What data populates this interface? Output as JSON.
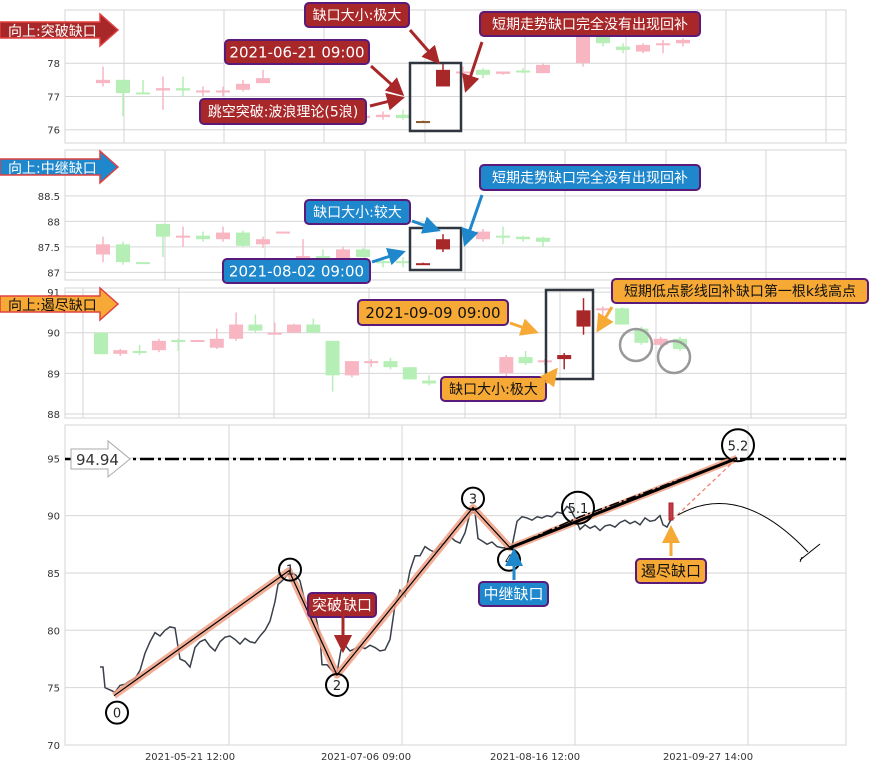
{
  "colors": {
    "up": "#f7b6c2",
    "down": "#b6efb6",
    "highlight": "#a8282a",
    "grid": "#d6d6d6",
    "red_tag": "#a8282a",
    "blue_tag": "#1f87cc",
    "orange_tag": "#f6a935",
    "wave": "#f0a084"
  },
  "chart_data": [
    {
      "type": "candlestick",
      "panel": "breakaway",
      "tag": "向上:突破缺口",
      "yticks": [
        78,
        77,
        76
      ],
      "ylim": [
        75.6,
        79.6
      ],
      "candles": [
        {
          "i": 0,
          "o": 77.4,
          "h": 77.9,
          "l": 77.3,
          "c": 77.5
        },
        {
          "i": 1,
          "o": 77.5,
          "h": 77.5,
          "l": 76.4,
          "c": 77.1
        },
        {
          "i": 2,
          "o": 77.12,
          "h": 77.5,
          "l": 77.1,
          "c": 77.1
        },
        {
          "i": 3,
          "o": 77.18,
          "h": 77.6,
          "l": 76.6,
          "c": 77.25
        },
        {
          "i": 4,
          "o": 77.25,
          "h": 77.6,
          "l": 77.0,
          "c": 77.18
        },
        {
          "i": 5,
          "o": 77.14,
          "h": 77.3,
          "l": 77.0,
          "c": 77.18
        },
        {
          "i": 6,
          "o": 77.14,
          "h": 77.3,
          "l": 77.0,
          "c": 77.18
        },
        {
          "i": 7,
          "o": 77.2,
          "h": 77.5,
          "l": 77.15,
          "c": 77.38
        },
        {
          "i": 8,
          "o": 77.4,
          "h": 77.8,
          "l": 77.4,
          "c": 77.55
        },
        {
          "i": 13,
          "o": 76.35,
          "h": 76.5,
          "l": 76.2,
          "c": 76.42
        },
        {
          "i": 14,
          "o": 76.38,
          "h": 76.55,
          "l": 76.3,
          "c": 76.45
        },
        {
          "i": 15,
          "o": 76.45,
          "h": 76.6,
          "l": 76.3,
          "c": 76.35
        },
        {
          "i": 16,
          "o": 76.24,
          "h": 76.27,
          "l": 76.2,
          "c": 76.26,
          "hl": "doji"
        },
        {
          "i": 17,
          "o": 77.3,
          "h": 78.0,
          "l": 77.3,
          "c": 77.8,
          "hl": "gap"
        },
        {
          "i": 18,
          "o": 77.7,
          "h": 77.9,
          "l": 77.55,
          "c": 77.75
        },
        {
          "i": 19,
          "o": 77.8,
          "h": 77.85,
          "l": 77.55,
          "c": 77.65
        },
        {
          "i": 20,
          "o": 77.68,
          "h": 77.75,
          "l": 77.65,
          "c": 77.75
        },
        {
          "i": 21,
          "o": 77.78,
          "h": 77.85,
          "l": 77.7,
          "c": 77.72
        },
        {
          "i": 22,
          "o": 77.7,
          "h": 78.0,
          "l": 77.7,
          "c": 77.95
        },
        {
          "i": 24,
          "o": 78.0,
          "h": 79.0,
          "l": 77.9,
          "c": 78.9
        },
        {
          "i": 25,
          "o": 78.9,
          "h": 79.0,
          "l": 78.5,
          "c": 78.6
        },
        {
          "i": 26,
          "o": 78.5,
          "h": 78.6,
          "l": 78.3,
          "c": 78.4
        },
        {
          "i": 27,
          "o": 78.35,
          "h": 78.6,
          "l": 78.3,
          "c": 78.55
        },
        {
          "i": 28,
          "o": 78.55,
          "h": 78.7,
          "l": 78.3,
          "c": 78.6
        },
        {
          "i": 29,
          "o": 78.6,
          "h": 78.75,
          "l": 78.5,
          "c": 78.7
        }
      ]
    },
    {
      "type": "candlestick",
      "panel": "runaway",
      "tag": "向上:中继缺口",
      "yticks": [
        88.5,
        88.0,
        87.5,
        87.0
      ],
      "ylim": [
        86.85,
        89.4
      ],
      "candles": [
        {
          "i": 0,
          "o": 87.35,
          "h": 87.7,
          "l": 87.2,
          "c": 87.55
        },
        {
          "i": 1,
          "o": 87.55,
          "h": 87.6,
          "l": 87.15,
          "c": 87.2
        },
        {
          "i": 2,
          "o": 87.2,
          "h": 87.2,
          "l": 87.18,
          "c": 87.18
        },
        {
          "i": 3,
          "o": 87.95,
          "h": 87.95,
          "l": 87.3,
          "c": 87.7
        },
        {
          "i": 4,
          "o": 87.68,
          "h": 87.9,
          "l": 87.5,
          "c": 87.72
        },
        {
          "i": 5,
          "o": 87.72,
          "h": 87.8,
          "l": 87.6,
          "c": 87.65
        },
        {
          "i": 6,
          "o": 87.65,
          "h": 87.9,
          "l": 87.6,
          "c": 87.78
        },
        {
          "i": 7,
          "o": 87.78,
          "h": 87.82,
          "l": 87.5,
          "c": 87.52
        },
        {
          "i": 8,
          "o": 87.55,
          "h": 87.7,
          "l": 87.48,
          "c": 87.65
        },
        {
          "i": 9,
          "o": 87.8,
          "h": 87.8,
          "l": 87.8,
          "c": 87.8
        },
        {
          "i": 10,
          "o": 87.22,
          "h": 87.65,
          "l": 87.2,
          "c": 87.32
        },
        {
          "i": 11,
          "o": 87.32,
          "h": 87.45,
          "l": 87.2,
          "c": 87.25
        },
        {
          "i": 12,
          "o": 87.25,
          "h": 87.5,
          "l": 87.2,
          "c": 87.45
        },
        {
          "i": 13,
          "o": 87.45,
          "h": 87.48,
          "l": 87.3,
          "c": 87.3
        },
        {
          "i": 14,
          "o": 87.22,
          "h": 87.3,
          "l": 87.1,
          "c": 87.18
        },
        {
          "i": 15,
          "o": 87.22,
          "h": 87.3,
          "l": 87.1,
          "c": 87.18
        },
        {
          "i": 16,
          "o": 87.17,
          "h": 87.19,
          "l": 87.15,
          "c": 87.18,
          "hl": "gap"
        },
        {
          "i": 17,
          "o": 87.45,
          "h": 87.75,
          "l": 87.4,
          "c": 87.65,
          "hl": "gap"
        },
        {
          "i": 19,
          "o": 87.65,
          "h": 87.85,
          "l": 87.6,
          "c": 87.8
        },
        {
          "i": 20,
          "o": 87.72,
          "h": 87.9,
          "l": 87.55,
          "c": 87.7
        },
        {
          "i": 21,
          "o": 87.7,
          "h": 87.72,
          "l": 87.6,
          "c": 87.65
        },
        {
          "i": 22,
          "o": 87.68,
          "h": 87.7,
          "l": 87.5,
          "c": 87.6
        }
      ]
    },
    {
      "type": "candlestick",
      "panel": "exhaustion",
      "tag": "向上:遏尽缺口",
      "yticks": [
        91,
        90,
        89,
        88
      ],
      "ylim": [
        87.9,
        91.1
      ],
      "candles": [
        {
          "i": 0,
          "o": 90.0,
          "h": 90.0,
          "l": 89.47,
          "c": 89.47
        },
        {
          "i": 1,
          "o": 89.48,
          "h": 89.6,
          "l": 89.43,
          "c": 89.57
        },
        {
          "i": 2,
          "o": 89.55,
          "h": 89.7,
          "l": 89.45,
          "c": 89.53
        },
        {
          "i": 3,
          "o": 89.57,
          "h": 89.85,
          "l": 89.52,
          "c": 89.8
        },
        {
          "i": 4,
          "o": 89.82,
          "h": 89.85,
          "l": 89.55,
          "c": 89.8
        },
        {
          "i": 5,
          "o": 89.8,
          "h": 89.82,
          "l": 89.78,
          "c": 89.82
        },
        {
          "i": 6,
          "o": 89.63,
          "h": 90.1,
          "l": 89.6,
          "c": 89.85
        },
        {
          "i": 7,
          "o": 89.85,
          "h": 90.5,
          "l": 89.8,
          "c": 90.2
        },
        {
          "i": 8,
          "o": 90.2,
          "h": 90.45,
          "l": 90.0,
          "c": 90.05
        },
        {
          "i": 9,
          "o": 90.0,
          "h": 90.25,
          "l": 89.98,
          "c": 90.0
        },
        {
          "i": 10,
          "o": 90.0,
          "h": 90.22,
          "l": 90.0,
          "c": 90.2
        },
        {
          "i": 11,
          "o": 90.2,
          "h": 90.35,
          "l": 90.0,
          "c": 90.0
        },
        {
          "i": 12,
          "o": 89.8,
          "h": 89.8,
          "l": 88.55,
          "c": 88.95
        },
        {
          "i": 13,
          "o": 88.95,
          "h": 89.3,
          "l": 88.9,
          "c": 89.3
        },
        {
          "i": 14,
          "o": 89.28,
          "h": 89.35,
          "l": 89.15,
          "c": 89.3
        },
        {
          "i": 15,
          "o": 89.3,
          "h": 89.38,
          "l": 89.1,
          "c": 89.15
        },
        {
          "i": 16,
          "o": 89.15,
          "h": 89.15,
          "l": 88.85,
          "c": 88.85
        },
        {
          "i": 17,
          "o": 88.82,
          "h": 88.95,
          "l": 88.7,
          "c": 88.75
        },
        {
          "i": 21,
          "o": 89.0,
          "h": 89.45,
          "l": 88.9,
          "c": 89.4
        },
        {
          "i": 22,
          "o": 89.4,
          "h": 89.55,
          "l": 89.2,
          "c": 89.25
        },
        {
          "i": 23,
          "o": 89.28,
          "h": 89.35,
          "l": 89.2,
          "c": 89.32
        },
        {
          "i": 24,
          "o": 89.35,
          "h": 89.5,
          "l": 89.1,
          "c": 89.45,
          "hl": "gap"
        },
        {
          "i": 25,
          "o": 90.15,
          "h": 90.85,
          "l": 89.95,
          "c": 90.55,
          "hl": "gap"
        },
        {
          "i": 26,
          "o": 90.55,
          "h": 90.65,
          "l": 90.35,
          "c": 90.6
        },
        {
          "i": 27,
          "o": 90.6,
          "h": 90.62,
          "l": 90.2,
          "c": 90.2
        },
        {
          "i": 28,
          "o": 90.1,
          "h": 90.15,
          "l": 89.7,
          "c": 89.75
        },
        {
          "i": 29,
          "o": 89.7,
          "h": 89.9,
          "l": 89.65,
          "c": 89.85
        },
        {
          "i": 30,
          "o": 89.85,
          "h": 89.9,
          "l": 89.55,
          "c": 89.6
        }
      ]
    },
    {
      "type": "line",
      "panel": "overview",
      "yticks": [
        95,
        90,
        85,
        80,
        75,
        70
      ],
      "ylim": [
        70,
        97.9
      ],
      "xticks": [
        "2021-05-21 12:00",
        "2021-07-06 09:00",
        "2021-08-16 12:00",
        "2021-09-27 14:00"
      ],
      "target_label": "94.94",
      "target": 94.94,
      "price": [
        [
          0,
          76.8
        ],
        [
          3,
          76.8
        ],
        [
          5,
          75
        ],
        [
          10,
          74.8
        ],
        [
          15,
          74.6
        ],
        [
          20,
          75.2
        ],
        [
          25,
          75.3
        ],
        [
          30,
          75.6
        ],
        [
          35,
          75.8
        ],
        [
          40,
          76.5
        ],
        [
          45,
          78
        ],
        [
          50,
          79
        ],
        [
          55,
          79.8
        ],
        [
          60,
          79.5
        ],
        [
          65,
          80
        ],
        [
          70,
          80.3
        ],
        [
          75,
          80.2
        ],
        [
          80,
          77.5
        ],
        [
          85,
          77.3
        ],
        [
          90,
          76.8
        ],
        [
          95,
          78.5
        ],
        [
          100,
          79
        ],
        [
          105,
          79.2
        ],
        [
          110,
          78.6
        ],
        [
          115,
          78.2
        ],
        [
          120,
          79
        ],
        [
          125,
          79.4
        ],
        [
          130,
          79.5
        ],
        [
          135,
          79.2
        ],
        [
          140,
          78.8
        ],
        [
          145,
          79.3
        ],
        [
          150,
          79.0
        ],
        [
          155,
          78.9
        ],
        [
          160,
          79.5
        ],
        [
          165,
          80
        ],
        [
          170,
          80.8
        ],
        [
          175,
          82.5
        ],
        [
          178,
          84
        ],
        [
          182,
          84.3
        ],
        [
          187,
          84.8
        ],
        [
          192,
          85
        ],
        [
          196,
          84.8
        ],
        [
          200,
          84.3
        ],
        [
          205,
          82.5
        ],
        [
          210,
          82
        ],
        [
          215,
          81.5
        ],
        [
          220,
          79.5
        ],
        [
          222,
          77
        ],
        [
          227,
          77
        ],
        [
          232,
          76.5
        ],
        [
          237,
          76.3
        ],
        [
          241,
          78.3
        ],
        [
          245,
          78.7
        ],
        [
          250,
          78.2
        ],
        [
          255,
          78.4
        ],
        [
          260,
          78.6
        ],
        [
          265,
          78.4
        ],
        [
          270,
          78.7
        ],
        [
          275,
          78.5
        ],
        [
          280,
          78.2
        ],
        [
          285,
          78.3
        ],
        [
          290,
          79.2
        ],
        [
          295,
          82.2
        ],
        [
          300,
          83.5
        ],
        [
          305,
          83.0
        ],
        [
          310,
          85.2
        ],
        [
          315,
          86.5
        ],
        [
          320,
          86.5
        ],
        [
          325,
          87.3
        ],
        [
          330,
          87.0
        ],
        [
          335,
          86.8
        ],
        [
          340,
          87.5
        ],
        [
          345,
          87.6
        ],
        [
          350,
          88.2
        ],
        [
          355,
          87.8
        ],
        [
          360,
          87.6
        ],
        [
          365,
          88.5
        ],
        [
          370,
          90.2
        ],
        [
          375,
          90.3
        ],
        [
          378,
          88
        ],
        [
          382,
          87.8
        ],
        [
          387,
          87.5
        ],
        [
          392,
          87.7
        ],
        [
          397,
          87.3
        ],
        [
          402,
          87.2
        ],
        [
          407,
          87.2
        ],
        [
          412,
          87.3
        ],
        [
          417,
          89.5
        ],
        [
          422,
          89.9
        ],
        [
          427,
          89.8
        ],
        [
          432,
          89.6
        ],
        [
          437,
          89.9
        ],
        [
          442,
          89.8
        ],
        [
          447,
          90.0
        ],
        [
          452,
          89.9
        ],
        [
          457,
          90.3
        ],
        [
          462,
          90.2
        ],
        [
          467,
          90.8
        ],
        [
          470,
          90.6
        ],
        [
          475,
          89.8
        ],
        [
          480,
          88.8
        ],
        [
          485,
          89.2
        ],
        [
          490,
          88.9
        ],
        [
          495,
          89.1
        ],
        [
          500,
          88.7
        ],
        [
          505,
          89.1
        ],
        [
          510,
          89.2
        ],
        [
          515,
          89.0
        ],
        [
          520,
          89.4
        ],
        [
          525,
          89.6
        ],
        [
          530,
          89.3
        ],
        [
          535,
          89.5
        ],
        [
          540,
          89.2
        ],
        [
          545,
          89.8
        ],
        [
          550,
          89.5
        ],
        [
          555,
          89.6
        ],
        [
          560,
          90.0
        ],
        [
          563,
          89.2
        ],
        [
          567,
          89.0
        ],
        [
          570,
          89.5
        ],
        [
          572,
          89.7
        ]
      ],
      "waves": [
        {
          "label": "0",
          "t": 14,
          "v": 74.3
        },
        {
          "label": "1",
          "t": 189,
          "v": 85.2
        },
        {
          "label": "2",
          "t": 237,
          "v": 76.1
        },
        {
          "label": "3",
          "t": 373,
          "v": 90.7
        },
        {
          "label": "4",
          "t": 410,
          "v": 87.2
        },
        {
          "label": "5.1",
          "t": 480,
          "v": 89.9
        },
        {
          "label": "5.2",
          "t": 637,
          "v": 95.0
        }
      ],
      "gap_labels": {
        "breakaway": "突破缺口",
        "runaway": "中继缺口",
        "exhaustion": "遏尽缺口"
      }
    }
  ],
  "annotations": {
    "p1_size": "缺口大小:极大",
    "p1_date": "2021-06-21 09:00",
    "p1_desc": "跳空突破:波浪理论(5浪)",
    "p1_fill": "短期走势缺口完全没有出现回补",
    "p2_size": "缺口大小:较大",
    "p2_date": "2021-08-02 09:00",
    "p2_fill": "短期走势缺口完全没有出现回补",
    "p3_date": "2021-09-09 09:00",
    "p3_size": "缺口大小:极大",
    "p3_fill": "短期低点影线回补缺口第一根k线高点"
  }
}
